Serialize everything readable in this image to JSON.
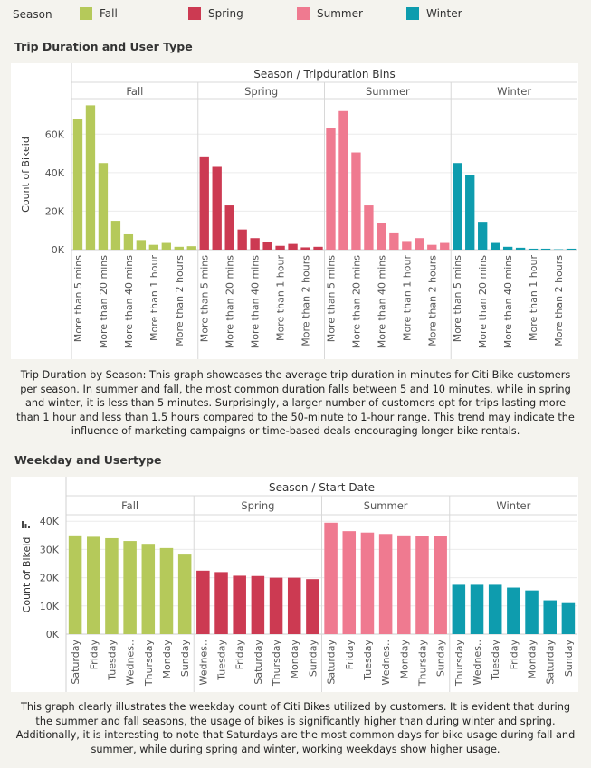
{
  "legend": {
    "title": "Season",
    "items": [
      {
        "label": "Fall",
        "color": "#b5c95a"
      },
      {
        "label": "Spring",
        "color": "#cc3a52"
      },
      {
        "label": "Summer",
        "color": "#ef7a90"
      },
      {
        "label": "Winter",
        "color": "#0e9cae"
      }
    ]
  },
  "sections": {
    "trip_title": "Trip Duration and User Type",
    "weekday_title": "Weekday and Usertype"
  },
  "captions": {
    "trip": "Trip Duration by Season: This graph showcases the average trip duration in minutes for Citi Bike customers per season. In summer and fall, the most common duration falls between 5 and 10 minutes, while in spring and winter, it is less than 5 minutes. Surprisingly, a larger number of customers opt for trips lasting more than 1 hour and less than 1.5 hours compared to the 50-minute to 1-hour range. This trend may indicate the influence of marketing campaigns or time-based deals encouraging longer bike rentals.",
    "weekday": "This graph clearly illustrates the weekday count of Citi Bikes utilized by customers. It is evident that during the summer and fall seasons, the usage of bikes is significantly higher than during winter and spring. Additionally, it is interesting to note that Saturdays are the most common days for bike usage during fall and summer, while during spring and winter, working weekdays show higher usage."
  },
  "chart_data": [
    {
      "type": "bar",
      "header": "Season / Tripduration Bins",
      "ylabel": "Count of Bikeid",
      "ylim": [
        0,
        78000
      ],
      "yticks": [
        0,
        20000,
        40000,
        60000
      ],
      "ytick_labels": [
        "0K",
        "20K",
        "40K",
        "60K"
      ],
      "grid": true,
      "tick_labels": [
        "More than 5 mins",
        "",
        "More than 20 mins",
        "",
        "More than 40 mins",
        "",
        "More than 1 hour",
        "",
        "More than 2 hours",
        ""
      ],
      "panels": [
        {
          "name": "Fall",
          "color": "#b5c95a",
          "values": [
            68000,
            75000,
            45000,
            15000,
            8000,
            5000,
            2500,
            3500,
            1500,
            1800
          ]
        },
        {
          "name": "Spring",
          "color": "#cc3a52",
          "values": [
            48000,
            43000,
            23000,
            10500,
            6000,
            4000,
            2000,
            3000,
            1200,
            1500
          ]
        },
        {
          "name": "Summer",
          "color": "#ef7a90",
          "values": [
            63000,
            72000,
            50500,
            23000,
            14000,
            8500,
            4500,
            6000,
            2500,
            3500
          ]
        },
        {
          "name": "Winter",
          "color": "#0e9cae",
          "values": [
            45000,
            39000,
            14500,
            3500,
            1500,
            1000,
            500,
            500,
            200,
            500
          ]
        }
      ]
    },
    {
      "type": "bar",
      "header": "Season / Start Date",
      "ylabel": "Count of Bikeid",
      "ylim": [
        0,
        42000
      ],
      "yticks": [
        0,
        10000,
        20000,
        30000,
        40000
      ],
      "ytick_labels": [
        "0K",
        "10K",
        "20K",
        "30K",
        "40K"
      ],
      "grid": true,
      "panels": [
        {
          "name": "Fall",
          "color": "#b5c95a",
          "categories": [
            "Saturday",
            "Friday",
            "Tuesday",
            "Wednes..",
            "Thursday",
            "Monday",
            "Sunday"
          ],
          "values": [
            35000,
            34500,
            34000,
            33000,
            32000,
            30500,
            28500
          ]
        },
        {
          "name": "Spring",
          "color": "#cc3a52",
          "categories": [
            "Wednes..",
            "Tuesday",
            "Friday",
            "Saturday",
            "Thursday",
            "Monday",
            "Sunday"
          ],
          "values": [
            22500,
            22000,
            20700,
            20600,
            20000,
            20000,
            19500
          ]
        },
        {
          "name": "Summer",
          "color": "#ef7a90",
          "categories": [
            "Saturday",
            "Friday",
            "Tuesday",
            "Wednes..",
            "Monday",
            "Thursday",
            "Sunday"
          ],
          "values": [
            39500,
            36500,
            36000,
            35500,
            35000,
            34700,
            34700
          ]
        },
        {
          "name": "Winter",
          "color": "#0e9cae",
          "categories": [
            "Thursday",
            "Wednes..",
            "Tuesday",
            "Friday",
            "Monday",
            "Saturday",
            "Sunday"
          ],
          "values": [
            17500,
            17500,
            17500,
            16500,
            15500,
            12000,
            11000
          ]
        }
      ]
    }
  ]
}
